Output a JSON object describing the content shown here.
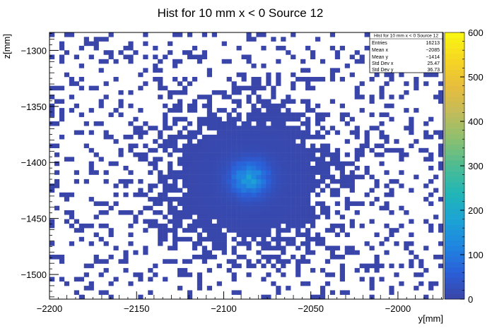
{
  "chart_data": {
    "type": "heatmap",
    "title": "Hist for 10 mm x < 0 Source 12",
    "xlabel": "y[mm]",
    "ylabel": "z[mm]",
    "xlim": [
      -2200,
      -1974
    ],
    "ylim": [
      -1522,
      -1284
    ],
    "x_ticks": [
      -2200,
      -2150,
      -2100,
      -2050,
      -2000
    ],
    "x_tick_labels": [
      "−2200",
      "−2150",
      "−2100",
      "−2050",
      "−2000"
    ],
    "y_ticks": [
      -1300,
      -1350,
      -1400,
      -1450,
      -1500
    ],
    "y_tick_labels": [
      "−1300",
      "−1350",
      "−1400",
      "−1450",
      "−1500"
    ],
    "colorbar": {
      "min": 0,
      "max": 600,
      "ticks": [
        0,
        100,
        200,
        300,
        400,
        500,
        600
      ],
      "tick_labels": [
        "0",
        "100",
        "200",
        "300",
        "400",
        "500",
        "600"
      ]
    },
    "peak": {
      "x": -2085,
      "y": -1414,
      "value": 140
    },
    "stats": {
      "title": "Hist for 10 mm x < 0 Source 12",
      "rows": [
        {
          "label": "Entries",
          "value": "16213"
        },
        {
          "label": "Mean x",
          "value": "−2085"
        },
        {
          "label": "Mean y",
          "value": "−1414"
        },
        {
          "label": "Std Dev x",
          "value": "25.47"
        },
        {
          "label": "Std Dev y",
          "value": "36.73"
        }
      ]
    }
  }
}
